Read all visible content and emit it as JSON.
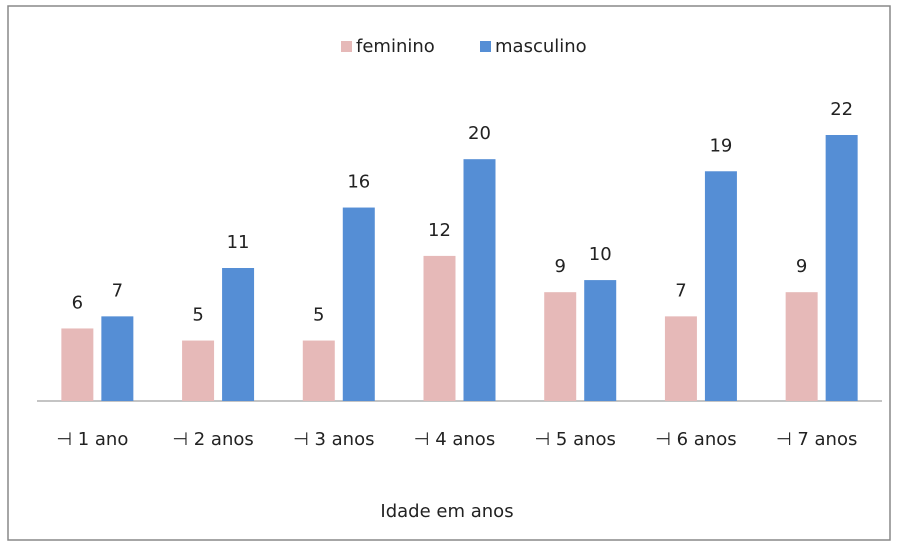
{
  "chart_data": {
    "type": "bar",
    "x_label": "Idade em anos",
    "categories": [
      "⊣ 1 ano",
      "⊣ 2 anos",
      "⊣ 3 anos",
      "⊣ 4 anos",
      "⊣ 5 anos",
      "⊣ 6 anos",
      "⊣ 7 anos"
    ],
    "series": [
      {
        "name": "feminino",
        "color": "#e6b9b8",
        "values": [
          6,
          5,
          5,
          12,
          9,
          7,
          9
        ]
      },
      {
        "name": "masculino",
        "color": "#558ed5",
        "values": [
          7,
          11,
          16,
          20,
          10,
          19,
          22
        ]
      }
    ],
    "legend": "top"
  }
}
